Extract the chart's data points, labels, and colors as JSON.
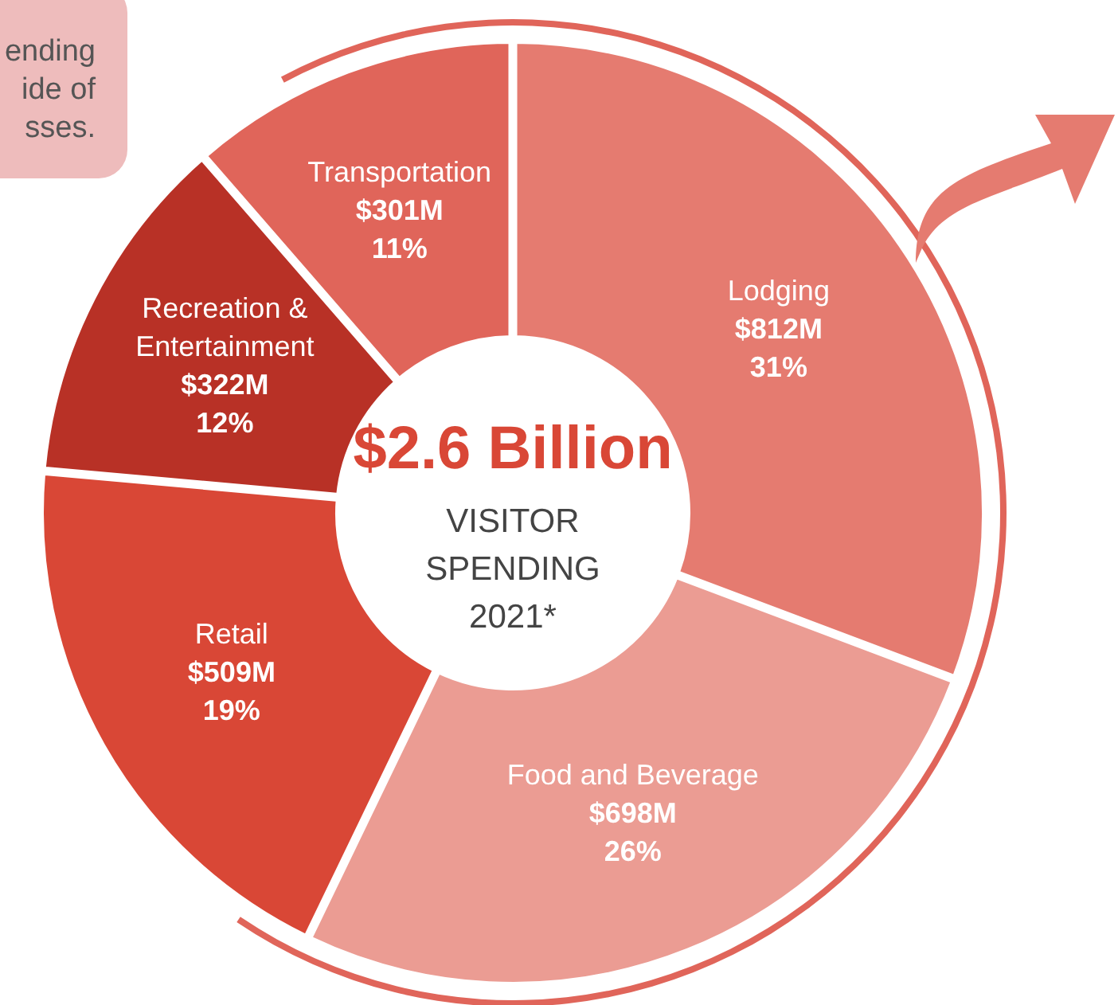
{
  "chart_data": {
    "type": "donut",
    "title": "$2.6 Billion",
    "subtitle": "VISITOR\nSPENDING\n2021*",
    "categories": [
      "Lodging",
      "Food and Beverage",
      "Retail",
      "Recreation &\nEntertainment",
      "Transportation"
    ],
    "values": [
      812,
      698,
      509,
      322,
      301
    ],
    "value_labels": [
      "$812M",
      "$698M",
      "$509M",
      "$322M",
      "$301M"
    ],
    "colors": [
      "#e57b70",
      "#eb9c93",
      "#d94736",
      "#b83126",
      "#e0655a"
    ],
    "annotations": [
      "ending\nide of\nsses.",
      {
        "text": "31%",
        "x": "Lodging"
      },
      {
        "text": "26%",
        "x": "Food and Beverage"
      },
      {
        "text": "19%",
        "x": "Retail"
      },
      {
        "text": "12%",
        "x": "Recreation &\nEntertainment"
      },
      {
        "text": "11%",
        "x": "Transportation"
      }
    ]
  }
}
